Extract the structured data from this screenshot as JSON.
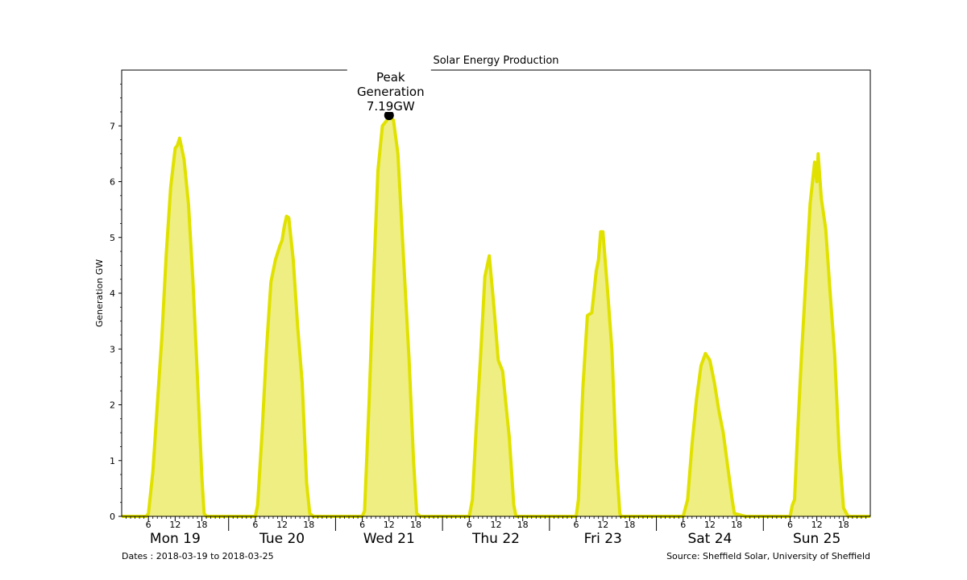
{
  "chart_data": {
    "type": "area",
    "title": "Solar Energy Production",
    "ylabel": "Generation GW",
    "xlabel": "",
    "ylim": [
      0,
      8
    ],
    "yticks": [
      0,
      1,
      2,
      3,
      4,
      5,
      6,
      7
    ],
    "xlim_hours": [
      0,
      168
    ],
    "hour_tick_labels": [
      "6",
      "12",
      "18"
    ],
    "days": [
      "Mon 19",
      "Tue 20",
      "Wed 21",
      "Thu 22",
      "Fri 23",
      "Sat 24",
      "Sun 25"
    ],
    "footer_left": "Dates : 2018-03-19 to 2018-03-25",
    "footer_right": "Source: Sheffield Solar, University of Sheffield",
    "fill_color": "#eeee82",
    "line_color": "#e1e100",
    "peak": {
      "hour": 60,
      "value": 7.19,
      "label_lines": [
        "Peak",
        "Generation",
        "7.19GW"
      ]
    },
    "series": [
      {
        "points": [
          [
            0,
            0
          ],
          [
            5.5,
            0
          ],
          [
            6,
            0.05
          ],
          [
            7,
            0.8
          ],
          [
            8,
            2.0
          ],
          [
            9,
            3.2
          ],
          [
            10,
            4.7
          ],
          [
            11,
            5.9
          ],
          [
            12,
            6.6
          ],
          [
            12.5,
            6.65
          ],
          [
            13,
            6.78
          ],
          [
            14,
            6.4
          ],
          [
            15,
            5.6
          ],
          [
            16,
            4.2
          ],
          [
            17,
            2.5
          ],
          [
            18,
            0.7
          ],
          [
            18.5,
            0.05
          ],
          [
            19,
            0
          ],
          [
            30,
            0
          ],
          [
            30.5,
            0.2
          ],
          [
            31.5,
            1.5
          ],
          [
            32.5,
            3.0
          ],
          [
            33.5,
            4.2
          ],
          [
            34.5,
            4.6
          ],
          [
            35.5,
            4.85
          ],
          [
            36,
            4.95
          ],
          [
            36.5,
            5.2
          ],
          [
            37,
            5.38
          ],
          [
            37.5,
            5.35
          ],
          [
            38.5,
            4.6
          ],
          [
            39.5,
            3.4
          ],
          [
            40.5,
            2.4
          ],
          [
            41.5,
            0.6
          ],
          [
            42.2,
            0.05
          ],
          [
            43,
            0
          ],
          [
            54,
            0
          ],
          [
            54.5,
            0.1
          ],
          [
            55.5,
            2.0
          ],
          [
            56.5,
            4.2
          ],
          [
            57.5,
            6.2
          ],
          [
            58.5,
            7.0
          ],
          [
            59.5,
            7.1
          ],
          [
            60,
            7.19
          ],
          [
            61,
            7.1
          ],
          [
            62,
            6.5
          ],
          [
            63,
            5.0
          ],
          [
            64.5,
            2.8
          ],
          [
            65.5,
            1.0
          ],
          [
            66.2,
            0.05
          ],
          [
            67,
            0
          ],
          [
            78,
            0
          ],
          [
            78.7,
            0.3
          ],
          [
            79.5,
            1.5
          ],
          [
            80.5,
            2.8
          ],
          [
            81.5,
            4.3
          ],
          [
            82.5,
            4.67
          ],
          [
            83.5,
            3.8
          ],
          [
            84.5,
            2.8
          ],
          [
            85.5,
            2.6
          ],
          [
            86.5,
            1.8
          ],
          [
            87,
            1.4
          ],
          [
            88,
            0.2
          ],
          [
            88.5,
            0
          ],
          [
            102,
            0
          ],
          [
            102.5,
            0.3
          ],
          [
            103.5,
            2.3
          ],
          [
            104.5,
            3.6
          ],
          [
            105.5,
            3.65
          ],
          [
            106.5,
            4.4
          ],
          [
            107,
            4.6
          ],
          [
            107.5,
            5.1
          ],
          [
            108,
            5.1
          ],
          [
            109,
            4.1
          ],
          [
            110,
            3.0
          ],
          [
            111,
            1.0
          ],
          [
            111.8,
            0.05
          ],
          [
            112,
            0
          ],
          [
            126,
            0
          ],
          [
            127,
            0.3
          ],
          [
            128,
            1.3
          ],
          [
            129,
            2.1
          ],
          [
            130,
            2.7
          ],
          [
            131,
            2.92
          ],
          [
            132,
            2.8
          ],
          [
            133,
            2.4
          ],
          [
            134,
            1.9
          ],
          [
            135,
            1.5
          ],
          [
            136,
            0.9
          ],
          [
            137,
            0.3
          ],
          [
            137.5,
            0.05
          ],
          [
            139,
            0.02
          ],
          [
            140,
            0
          ],
          [
            150,
            0
          ],
          [
            150.5,
            0.2
          ],
          [
            151,
            0.3
          ],
          [
            151.5,
            1.2
          ],
          [
            152.5,
            2.8
          ],
          [
            153.5,
            4.2
          ],
          [
            154.5,
            5.6
          ],
          [
            155.5,
            6.35
          ],
          [
            156,
            6.0
          ],
          [
            156.3,
            6.5
          ],
          [
            157,
            5.7
          ],
          [
            158,
            5.15
          ],
          [
            159,
            4.0
          ],
          [
            160,
            2.9
          ],
          [
            161,
            1.2
          ],
          [
            162,
            0.15
          ],
          [
            163,
            0
          ],
          [
            168,
            0
          ]
        ]
      }
    ]
  }
}
